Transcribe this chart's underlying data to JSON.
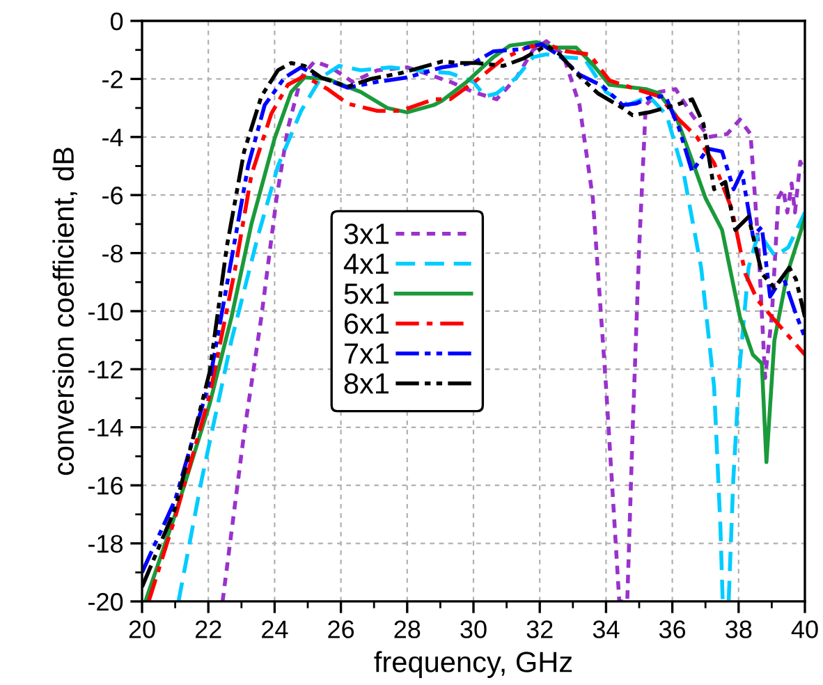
{
  "chart_data": {
    "type": "line",
    "xlabel": "frequency, GHz",
    "ylabel": "conversion coefficient, dB",
    "xlim": [
      20,
      40
    ],
    "ylim": [
      -20,
      0
    ],
    "xticks": [
      20,
      22,
      24,
      26,
      28,
      30,
      32,
      34,
      36,
      38,
      40
    ],
    "yticks": [
      -20,
      -18,
      -16,
      -14,
      -12,
      -10,
      -8,
      -6,
      -4,
      -2,
      0
    ],
    "grid": true,
    "legend": "center",
    "series": [
      {
        "name": "3x1",
        "color": "#9932cc",
        "line_style": "dotted",
        "x": [
          22.43,
          23.08,
          23.6,
          24.06,
          24.4,
          24.8,
          25.2,
          25.7,
          26.35,
          27.1,
          28,
          28.27,
          29.3,
          30,
          30.7,
          31.3,
          31.8,
          32.2,
          32.7,
          33.2,
          33.6,
          34,
          34.26,
          34.4,
          34.64,
          34.8,
          35,
          35.2,
          35.6,
          36.1,
          36.6,
          37.1,
          37.65,
          38.04,
          38.36,
          38.6,
          38.8,
          39.0,
          39.2,
          39.34,
          39.47,
          39.6,
          39.7,
          39.86,
          40
        ],
        "values": [
          -20,
          -14.2,
          -10.2,
          -6.1,
          -3.7,
          -1.95,
          -1.4,
          -1.6,
          -2.1,
          -1.7,
          -1.6,
          -1.7,
          -2.1,
          -2.45,
          -2.7,
          -1.95,
          -1.0,
          -0.7,
          -1.15,
          -2.9,
          -6.1,
          -12.6,
          -17.4,
          -20,
          -20,
          -14.2,
          -7.8,
          -2.9,
          -2.45,
          -2.35,
          -3.25,
          -4,
          -3.9,
          -3.4,
          -3.9,
          -7.8,
          -12.3,
          -10.2,
          -6.1,
          -5.8,
          -6.6,
          -5.6,
          -6.6,
          -4.85,
          -5.2
        ]
      },
      {
        "name": "4x1",
        "color": "#00ccff",
        "line_style": "dashed",
        "x": [
          21.1,
          21.8,
          22.7,
          23.5,
          24.1,
          24.8,
          25.4,
          25.95,
          26.6,
          27.5,
          28.27,
          29.3,
          30,
          30.35,
          30.7,
          31.3,
          31.8,
          32.2,
          32.7,
          33.35,
          34,
          34.66,
          35.3,
          35.83,
          36.35,
          36.87,
          37.26,
          37.45,
          37.52,
          37.7,
          37.84,
          38.04,
          38.3,
          38.6,
          39.1,
          39.5,
          40
        ],
        "values": [
          -20,
          -15.8,
          -11,
          -7.4,
          -5,
          -3.1,
          -1.95,
          -1.55,
          -1.7,
          -1.6,
          -1.7,
          -1.8,
          -2.1,
          -2.6,
          -2.5,
          -1.95,
          -1.25,
          -1.15,
          -1.25,
          -1.3,
          -2.45,
          -2.9,
          -2.6,
          -3.25,
          -5.3,
          -8.5,
          -12.6,
          -17.4,
          -20,
          -20,
          -15.8,
          -11.8,
          -8.5,
          -7.3,
          -8.1,
          -7.8,
          -6.6
        ]
      },
      {
        "name": "5x1",
        "color": "#1a9a3a",
        "line_style": "solid",
        "x": [
          20.1,
          21,
          22.04,
          22.7,
          23.3,
          24,
          24.5,
          24.9,
          25.6,
          26.6,
          27.4,
          28,
          28.8,
          29.05,
          29.8,
          30.6,
          31.1,
          31.9,
          32.4,
          33.1,
          33.6,
          34.1,
          35.2,
          35.6,
          36.1,
          36.5,
          37,
          37.5,
          38.04,
          38.43,
          38.7,
          38.84,
          39.08,
          39.47,
          40
        ],
        "values": [
          -20,
          -17,
          -13.2,
          -10.2,
          -7,
          -4.05,
          -2.45,
          -1.95,
          -2.0,
          -2.45,
          -3,
          -3.15,
          -2.9,
          -2.75,
          -2.1,
          -1.25,
          -0.85,
          -0.73,
          -0.92,
          -0.92,
          -1.5,
          -2.2,
          -2.35,
          -2.5,
          -3.25,
          -4.5,
          -6.1,
          -7.2,
          -10.2,
          -11.5,
          -11.8,
          -15.2,
          -11,
          -8.7,
          -6.8
        ]
      },
      {
        "name": "6x1",
        "color": "#ff0000",
        "line_style": "dashdot",
        "x": [
          20.2,
          21,
          22.04,
          22.8,
          23.3,
          23.9,
          24.4,
          24.9,
          25.6,
          26.2,
          27.1,
          27.8,
          28.8,
          29.3,
          30.2,
          30.9,
          31.65,
          32.2,
          32.8,
          33.5,
          34.1,
          34.9,
          35.6,
          36.2,
          36.74,
          37.26,
          37.8,
          38.2,
          38.56,
          39.08,
          40
        ],
        "values": [
          -20,
          -17.1,
          -12.9,
          -8.6,
          -5.3,
          -3.2,
          -2.2,
          -1.9,
          -2.35,
          -2.85,
          -3.1,
          -3.1,
          -2.7,
          -2.7,
          -1.95,
          -1.3,
          -0.9,
          -0.8,
          -1.05,
          -1.15,
          -2.05,
          -2.35,
          -2.6,
          -3.4,
          -4,
          -4.9,
          -6.5,
          -8.7,
          -9.6,
          -10.3,
          -11.5
        ]
      },
      {
        "name": "7x1",
        "color": "#0000ff",
        "line_style": "dashdotdot",
        "x": [
          20,
          21,
          22.04,
          22.7,
          23.2,
          23.7,
          24.3,
          24.8,
          25.3,
          26.2,
          27.1,
          28,
          29.05,
          30,
          30.6,
          31.4,
          32.05,
          32.6,
          33.2,
          33.9,
          34.5,
          34.9,
          35.4,
          35.8,
          36.2,
          36.6,
          37.06,
          37.5,
          37.85,
          38.1,
          38.43,
          38.7,
          38.95,
          39.34,
          39.73,
          40
        ],
        "values": [
          -19,
          -16.5,
          -12.4,
          -8.2,
          -5,
          -2.9,
          -1.95,
          -1.6,
          -1.9,
          -2.3,
          -2.1,
          -1.95,
          -1.6,
          -1.45,
          -1.05,
          -0.98,
          -0.8,
          -1.2,
          -1.85,
          -2.25,
          -2.9,
          -2.85,
          -2.6,
          -2.6,
          -3.7,
          -5.2,
          -4.4,
          -4.5,
          -5.8,
          -5.2,
          -7.4,
          -7.1,
          -9.5,
          -8.8,
          -10.1,
          -10.9
        ]
      },
      {
        "name": "8x1",
        "color": "#000000",
        "line_style": "dashdotdot",
        "x": [
          20,
          21,
          22.04,
          22.56,
          23.08,
          23.6,
          24.1,
          24.5,
          24.9,
          25.4,
          26.2,
          26.9,
          27.8,
          29.05,
          29.6,
          30.1,
          30.9,
          31.5,
          32.2,
          32.6,
          33.1,
          33.76,
          34.5,
          34.8,
          35.3,
          36.1,
          36.6,
          36.94,
          37.26,
          37.6,
          37.9,
          38.3,
          38.7,
          39.08,
          39.53,
          39.73,
          40
        ],
        "values": [
          -19.5,
          -16.8,
          -12.1,
          -7.76,
          -4.5,
          -2.6,
          -1.7,
          -1.45,
          -1.55,
          -1.95,
          -2.27,
          -2.0,
          -1.8,
          -1.4,
          -1.45,
          -1.45,
          -1.55,
          -1.3,
          -0.85,
          -1.15,
          -1.8,
          -2.5,
          -3.0,
          -3.25,
          -3.15,
          -2.9,
          -2.7,
          -3.55,
          -5.8,
          -5.55,
          -7.2,
          -6.75,
          -8.7,
          -9.2,
          -8.5,
          -8.9,
          -10.2
        ]
      }
    ]
  }
}
